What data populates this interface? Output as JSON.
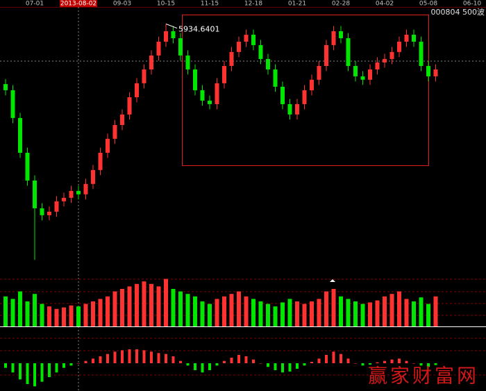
{
  "chart_data": {
    "type": "candlestick",
    "code": "000804 500波",
    "watermark": "赢家财富网",
    "highlight_index": 10,
    "up_color": "#ff3232",
    "down_color": "#00e600",
    "categories": [
      null,
      null,
      null,
      null,
      "07-01",
      null,
      null,
      null,
      null,
      null,
      "2013-08-02",
      null,
      null,
      null,
      null,
      null,
      "09-03",
      null,
      null,
      null,
      null,
      null,
      "10-15",
      null,
      null,
      null,
      null,
      null,
      "11-15",
      null,
      null,
      null,
      null,
      null,
      "12-18",
      null,
      null,
      null,
      null,
      null,
      "01-21",
      null,
      null,
      null,
      null,
      null,
      "02-28",
      null,
      null,
      null,
      null,
      null,
      "04-02",
      null,
      null,
      null,
      null,
      null,
      "05-08",
      null,
      null,
      null,
      null,
      null,
      "06-10"
    ],
    "open": [
      5350,
      5290,
      5020,
      4682,
      4412,
      4142,
      4075,
      4109,
      4210,
      4244,
      4311,
      4278,
      4379,
      4514,
      4682,
      4818,
      4952,
      5054,
      5222,
      5358,
      5492,
      5628,
      5762,
      5864,
      5796,
      5628,
      5492,
      5290,
      5189,
      5155,
      5358,
      5526,
      5662,
      5762,
      5830,
      5729,
      5594,
      5492,
      5324,
      5155,
      5054,
      5155,
      5290,
      5392,
      5526,
      5729,
      5864,
      5796,
      5526,
      5425,
      5392,
      5492,
      5560,
      5594,
      5662,
      5762,
      5830,
      5762,
      5526,
      5425,
      null,
      null,
      null,
      null,
      null
    ],
    "high": [
      5400,
      5340,
      5070,
      4732,
      4462,
      4192,
      4159,
      4260,
      4294,
      4361,
      4361,
      4429,
      4564,
      4732,
      4868,
      5002,
      5104,
      5272,
      5408,
      5542,
      5678,
      5812,
      5934.6401,
      5914,
      5846,
      5678,
      5542,
      5340,
      5239,
      5408,
      5576,
      5712,
      5812,
      5880,
      5880,
      5779,
      5644,
      5542,
      5374,
      5205,
      5205,
      5340,
      5442,
      5576,
      5779,
      5914,
      5914,
      5846,
      5576,
      5475,
      5542,
      5610,
      5644,
      5712,
      5812,
      5880,
      5880,
      5812,
      5576,
      5542,
      null,
      null,
      null,
      null,
      null
    ],
    "low": [
      5240,
      4970,
      4632,
      4362,
      3640,
      4025,
      4025,
      4059,
      4160,
      4194,
      4228,
      4228,
      4329,
      4464,
      4632,
      4768,
      4902,
      5004,
      5172,
      5308,
      5442,
      5578,
      5712,
      5746,
      5578,
      5442,
      5240,
      5139,
      5105,
      5105,
      5308,
      5476,
      5612,
      5712,
      5679,
      5544,
      5442,
      5274,
      5105,
      5004,
      5004,
      5105,
      5240,
      5342,
      5476,
      5679,
      5746,
      5476,
      5375,
      5342,
      5342,
      5442,
      5510,
      5544,
      5612,
      5712,
      5712,
      5476,
      5375,
      5375,
      null,
      null,
      null,
      null,
      null
    ],
    "close": [
      5290,
      5020,
      4682,
      4412,
      4142,
      4075,
      4109,
      4210,
      4244,
      4311,
      4278,
      4379,
      4514,
      4682,
      4818,
      4952,
      5054,
      5222,
      5358,
      5492,
      5628,
      5762,
      5864,
      5796,
      5628,
      5492,
      5290,
      5189,
      5155,
      5358,
      5526,
      5662,
      5762,
      5830,
      5729,
      5594,
      5492,
      5324,
      5155,
      5054,
      5155,
      5290,
      5392,
      5526,
      5729,
      5864,
      5796,
      5526,
      5425,
      5392,
      5492,
      5560,
      5594,
      5662,
      5762,
      5830,
      5762,
      5526,
      5425,
      5492,
      null,
      null,
      null,
      null,
      null
    ],
    "ylim": [
      3500,
      6100
    ],
    "volume": {
      "values": [
        60,
        55,
        70,
        50,
        65,
        45,
        40,
        35,
        38,
        42,
        40,
        45,
        50,
        55,
        60,
        70,
        75,
        80,
        85,
        90,
        85,
        80,
        95,
        75,
        70,
        65,
        60,
        50,
        45,
        55,
        60,
        65,
        70,
        60,
        55,
        50,
        45,
        40,
        48,
        55,
        50,
        45,
        50,
        55,
        70,
        75,
        60,
        55,
        50,
        45,
        48,
        52,
        60,
        65,
        70,
        55,
        50,
        58,
        45,
        60,
        null,
        null,
        null,
        null,
        null
      ],
      "ylim": [
        0,
        100
      ]
    },
    "macd": {
      "values": [
        -10,
        -20,
        -35,
        -45,
        -50,
        -40,
        -30,
        -20,
        -10,
        -5,
        0,
        5,
        10,
        15,
        20,
        25,
        28,
        30,
        30,
        28,
        25,
        22,
        20,
        15,
        5,
        -5,
        -15,
        -20,
        -15,
        -5,
        5,
        12,
        18,
        15,
        8,
        0,
        -8,
        -15,
        -20,
        -18,
        -12,
        -5,
        3,
        10,
        18,
        25,
        20,
        10,
        0,
        -5,
        -3,
        2,
        5,
        8,
        10,
        5,
        0,
        -5,
        -8,
        -4,
        null,
        null,
        null,
        null,
        null
      ],
      "ylim": [
        -60,
        60
      ]
    }
  }
}
